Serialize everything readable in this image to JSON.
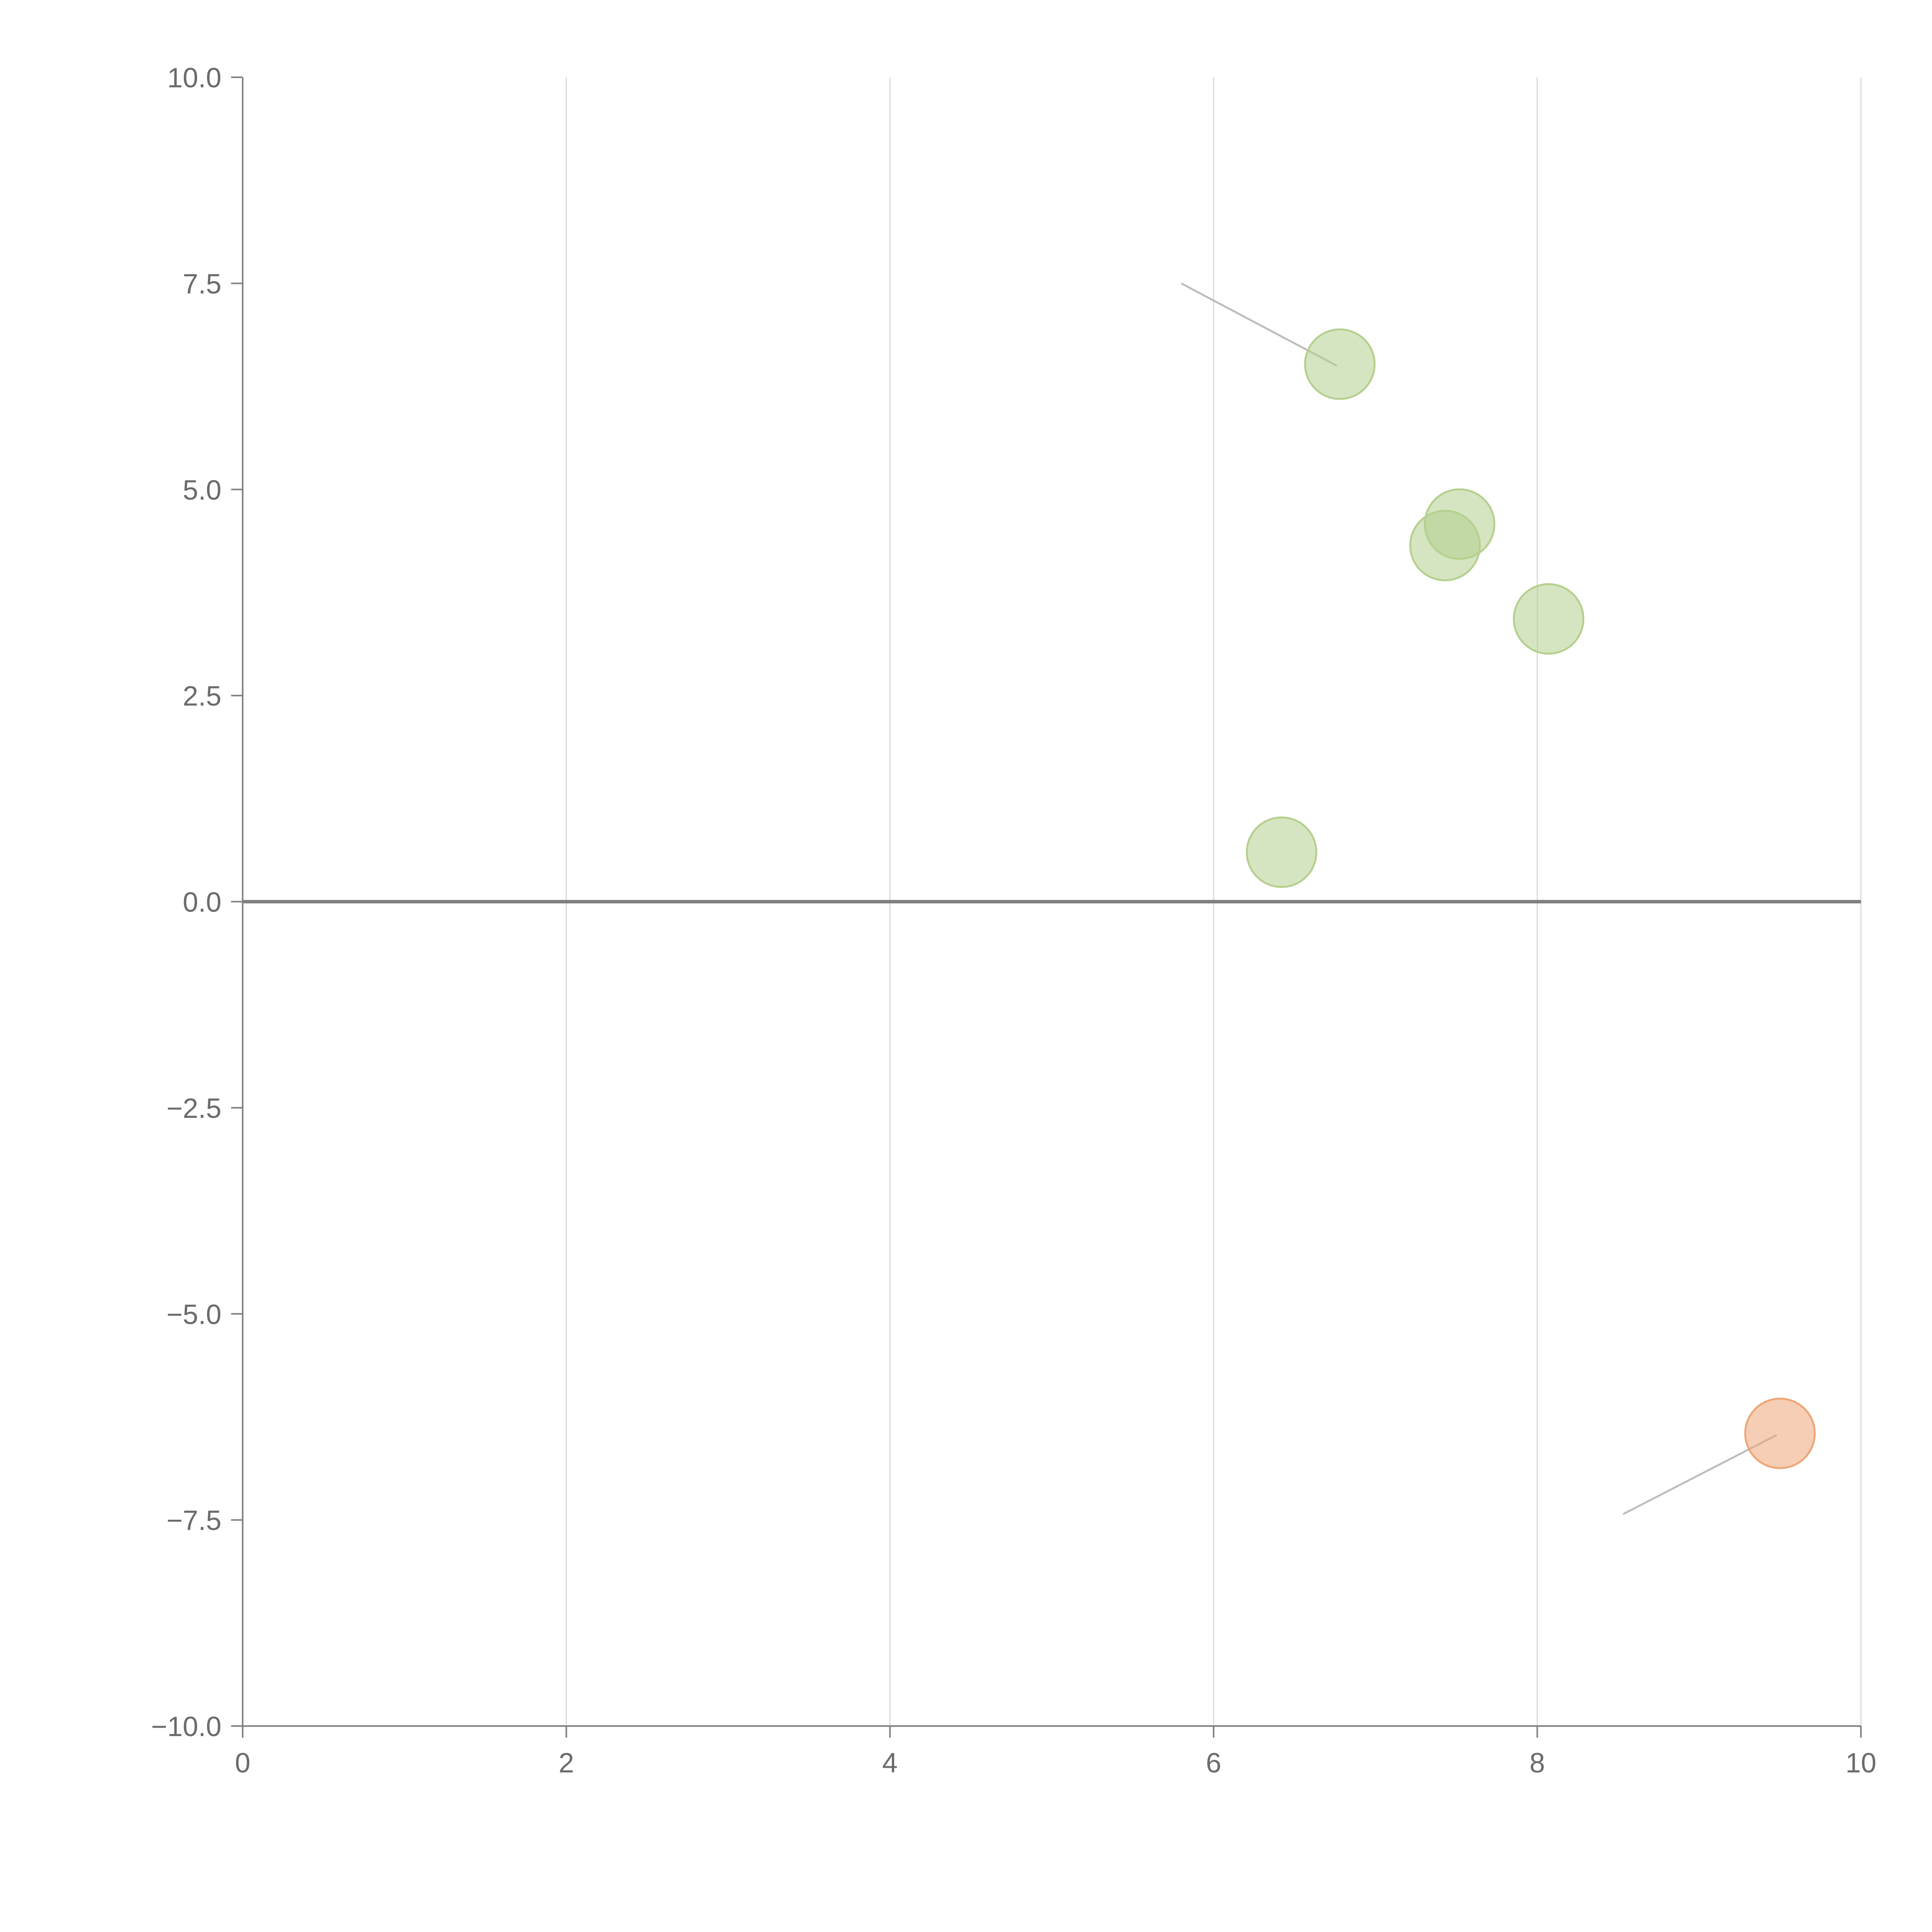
{
  "chart_data": {
    "type": "scatter",
    "title": "",
    "xlabel": "",
    "ylabel": "",
    "xlim": [
      0,
      10
    ],
    "ylim": [
      -10,
      10
    ],
    "grid": {
      "vertical": true,
      "horizontal": false
    },
    "zero_line": true,
    "x_ticks": [
      {
        "value": 0,
        "label": "0"
      },
      {
        "value": 2,
        "label": "2"
      },
      {
        "value": 4,
        "label": "4"
      },
      {
        "value": 6,
        "label": "6"
      },
      {
        "value": 8,
        "label": "8"
      },
      {
        "value": 10,
        "label": "10"
      }
    ],
    "y_ticks": [
      {
        "value": 10,
        "label": "10.0"
      },
      {
        "value": 7.5,
        "label": "7.5"
      },
      {
        "value": 5,
        "label": "5.0"
      },
      {
        "value": 2.5,
        "label": "2.5"
      },
      {
        "value": 0,
        "label": "0.0"
      },
      {
        "value": -2.5,
        "label": "−2.5"
      },
      {
        "value": -5,
        "label": "−5.0"
      },
      {
        "value": -7.5,
        "label": "−7.5"
      },
      {
        "value": -10,
        "label": "−10.0"
      }
    ],
    "colors": {
      "positive": "#b5d08e",
      "negative": "#eea678",
      "grid": "#d9d9d9",
      "axis": "#808080",
      "leader": "#bdbdbd"
    },
    "points": [
      {
        "x": 6.78,
        "y": 6.52,
        "group": "positive",
        "label": "",
        "label_x": 5.8,
        "label_y": 7.5
      },
      {
        "x": 7.52,
        "y": 4.58,
        "group": "positive",
        "label": "",
        "label_x": 7.7,
        "label_y": 5.0
      },
      {
        "x": 7.43,
        "y": 4.32,
        "group": "positive",
        "label": "",
        "label_x": 7.3,
        "label_y": 3.8
      },
      {
        "x": 8.07,
        "y": 3.43,
        "group": "positive",
        "label": "",
        "label_x": 8.07,
        "label_y": 3.43
      },
      {
        "x": 6.42,
        "y": 0.6,
        "group": "positive",
        "label": "",
        "label_x": 6.42,
        "label_y": 0.6
      },
      {
        "x": 9.5,
        "y": -6.45,
        "group": "negative",
        "label": "",
        "label_x": 8.53,
        "label_y": -7.43
      }
    ]
  }
}
